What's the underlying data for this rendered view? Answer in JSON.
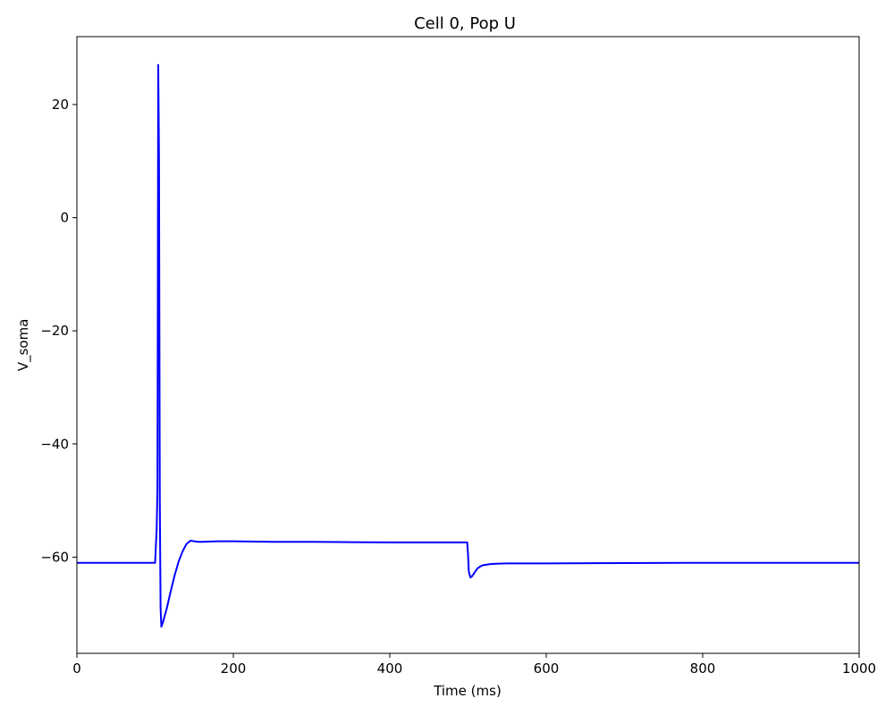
{
  "chart_data": {
    "type": "line",
    "title": "Cell 0, Pop U",
    "xlabel": "Time (ms)",
    "ylabel": "V_soma",
    "xlim": [
      0,
      1000
    ],
    "ylim": [
      -77,
      32
    ],
    "x_ticks": [
      0,
      200,
      400,
      600,
      800,
      1000
    ],
    "x_tick_labels": [
      "0",
      "200",
      "400",
      "600",
      "800",
      "1000"
    ],
    "y_ticks": [
      -60,
      -40,
      -20,
      0,
      20
    ],
    "y_tick_labels": [
      "−60",
      "−40",
      "−20",
      "0",
      "20"
    ],
    "grid": false,
    "series": [
      {
        "color": "#0000ff",
        "x": [
          0,
          50,
          100,
          102,
          103,
          104,
          105,
          106,
          107,
          108,
          110,
          115,
          120,
          125,
          130,
          135,
          140,
          145,
          150,
          155,
          160,
          180,
          200,
          250,
          300,
          350,
          400,
          450,
          499,
          500,
          501,
          503,
          505,
          508,
          512,
          516,
          520,
          525,
          530,
          540,
          550,
          600,
          700,
          800,
          900,
          1000
        ],
        "y": [
          -61.0,
          -61.0,
          -61.0,
          -55.0,
          -48.0,
          27.0,
          10.0,
          -50.0,
          -69.0,
          -72.3,
          -71.5,
          -69.0,
          -66.0,
          -63.2,
          -60.8,
          -59.0,
          -57.7,
          -57.1,
          -57.2,
          -57.3,
          -57.3,
          -57.2,
          -57.2,
          -57.3,
          -57.3,
          -57.35,
          -57.4,
          -57.4,
          -57.4,
          -59.5,
          -62.5,
          -63.6,
          -63.4,
          -62.8,
          -62.0,
          -61.6,
          -61.4,
          -61.3,
          -61.2,
          -61.15,
          -61.1,
          -61.1,
          -61.05,
          -61.0,
          -61.0,
          -61.0
        ]
      }
    ]
  }
}
